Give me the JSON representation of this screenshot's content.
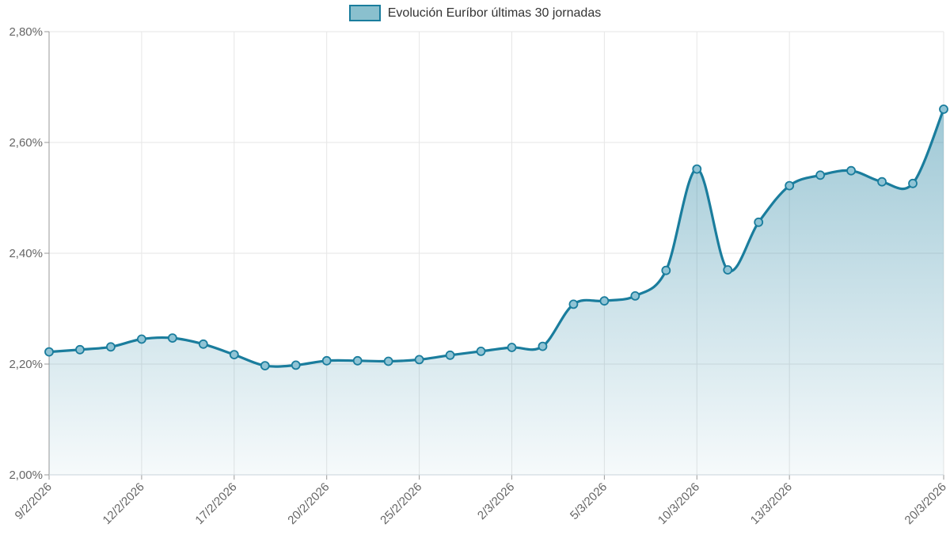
{
  "legend": {
    "label": "Evolución Euríbor últimas 30 jornadas"
  },
  "chart_data": {
    "type": "area",
    "title": "Evolución Euríbor últimas 30 jornadas",
    "x": [
      "9/2/2026",
      "10/2/2026",
      "11/2/2026",
      "12/2/2026",
      "13/2/2026",
      "16/2/2026",
      "17/2/2026",
      "18/2/2026",
      "19/2/2026",
      "20/2/2026",
      "23/2/2026",
      "24/2/2026",
      "25/2/2026",
      "26/2/2026",
      "27/2/2026",
      "2/3/2026",
      "3/3/2026",
      "4/3/2026",
      "5/3/2026",
      "6/3/2026",
      "9/3/2026",
      "10/3/2026",
      "11/3/2026",
      "12/3/2026",
      "13/3/2026",
      "16/3/2026",
      "17/3/2026",
      "18/3/2026",
      "19/3/2026",
      "20/3/2026"
    ],
    "values": [
      2.222,
      2.226,
      2.231,
      2.245,
      2.247,
      2.236,
      2.217,
      2.197,
      2.198,
      2.206,
      2.206,
      2.205,
      2.208,
      2.216,
      2.223,
      2.23,
      2.232,
      2.308,
      2.314,
      2.323,
      2.369,
      2.552,
      2.37,
      2.456,
      2.522,
      2.541,
      2.549,
      2.529,
      2.526,
      2.66
    ],
    "ylabel": "",
    "xlabel": "",
    "ylim": [
      2.0,
      2.8
    ],
    "y_tick_values": [
      2.0,
      2.2,
      2.4,
      2.6,
      2.8
    ],
    "y_tick_labels": [
      "2,00%",
      "2,20%",
      "2,40%",
      "2,60%",
      "2,80%"
    ],
    "x_tick_indices": [
      0,
      3,
      6,
      9,
      12,
      15,
      18,
      21,
      24,
      29
    ],
    "x_tick_labels": [
      "9/2/2026",
      "12/2/2026",
      "17/2/2026",
      "20/2/2026",
      "25/2/2026",
      "2/3/2026",
      "5/3/2026",
      "10/3/2026",
      "13/3/2026",
      "20/3/2026"
    ],
    "grid": true,
    "legend_position": "top-center",
    "marker": "circle"
  },
  "colors": {
    "line": "#1a7d9d",
    "marker_fill": "#90c4d5",
    "legend_swatch_fill": "#8ac0ce",
    "area_top": "rgba(26,125,157,0.50)",
    "area_bottom": "rgba(26,125,157,0.04)",
    "grid": "#e6e6e6",
    "y_axis_line": "#999999",
    "x_axis_line": "#ccd6dc",
    "tick": "#999999",
    "axis_label": "#666666",
    "legend_text": "#333333"
  }
}
